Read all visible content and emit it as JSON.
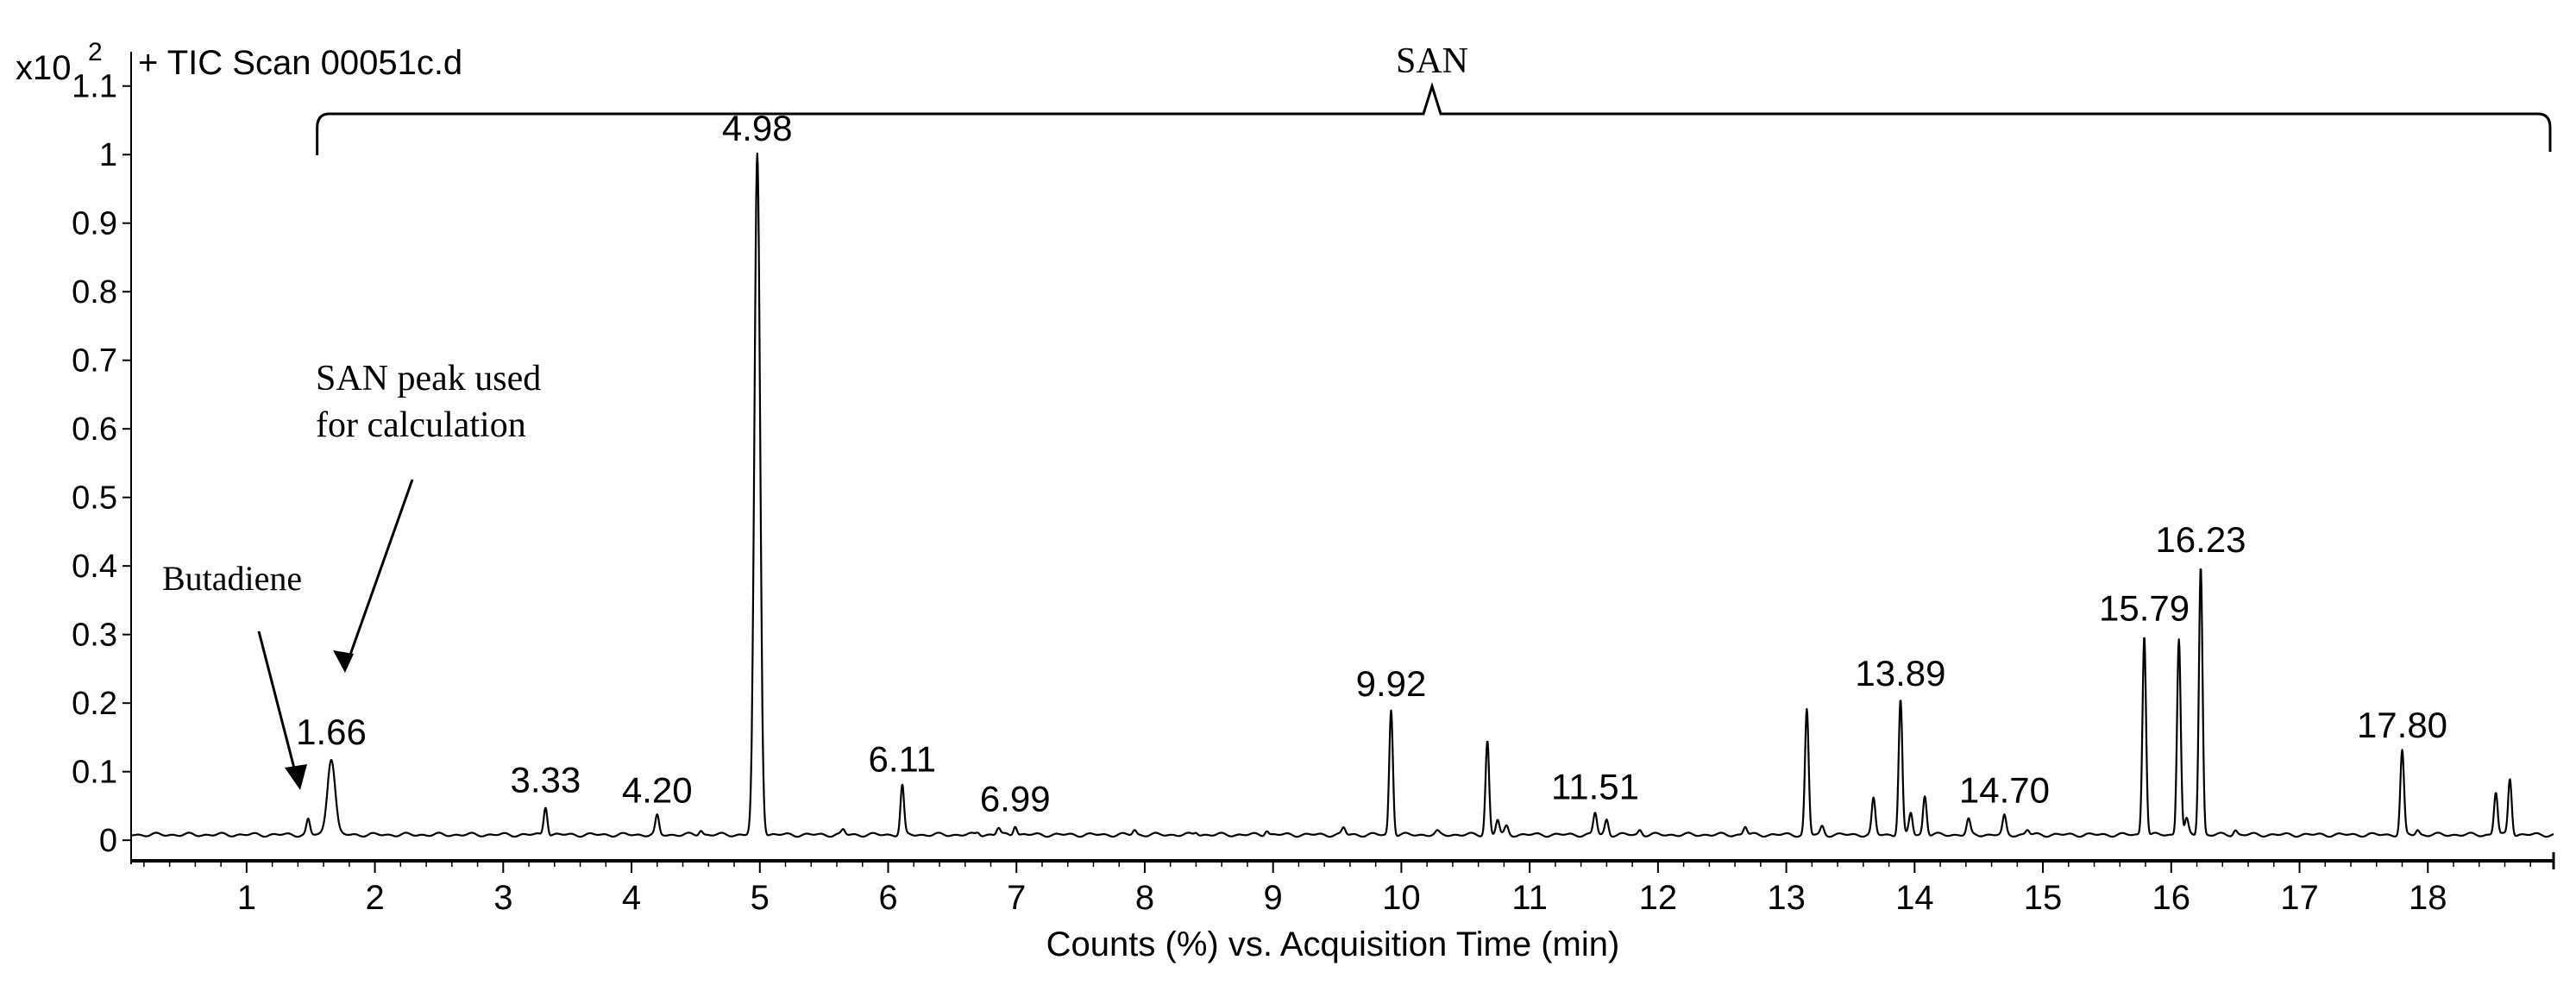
{
  "chart_data": {
    "type": "line",
    "title": "+ TIC Scan 00051c.d",
    "y_multiplier": "x10",
    "y_exponent": "2",
    "xlabel": "Counts (%) vs. Acquisition Time (min)",
    "ylabel": "",
    "xlim": [
      0.1,
      18.98
    ],
    "ylim": [
      -0.03,
      1.15
    ],
    "x_ticks": [
      1,
      2,
      3,
      4,
      5,
      6,
      7,
      8,
      9,
      10,
      11,
      12,
      13,
      14,
      15,
      16,
      17,
      18
    ],
    "y_ticks": [
      {
        "value": 0,
        "label": "0"
      },
      {
        "value": 0.1,
        "label": "0.1"
      },
      {
        "value": 0.2,
        "label": "0.2"
      },
      {
        "value": 0.3,
        "label": "0.3"
      },
      {
        "value": 0.4,
        "label": "0.4"
      },
      {
        "value": 0.5,
        "label": "0.5"
      },
      {
        "value": 0.6,
        "label": "0.6"
      },
      {
        "value": 0.7,
        "label": "0.7"
      },
      {
        "value": 0.8,
        "label": "0.8"
      },
      {
        "value": 0.9,
        "label": "0.9"
      },
      {
        "value": 1,
        "label": "1"
      },
      {
        "value": 1.1,
        "label": "1.1"
      }
    ],
    "baseline": 0.008,
    "peaks": [
      {
        "x": 1.48,
        "y": 0.03
      },
      {
        "x": 1.66,
        "y": 0.12,
        "label": "1.66"
      },
      {
        "x": 3.33,
        "y": 0.05,
        "label": "3.33"
      },
      {
        "x": 4.2,
        "y": 0.035,
        "label": "4.20"
      },
      {
        "x": 4.54,
        "y": 0.015
      },
      {
        "x": 4.98,
        "y": 1.0,
        "label": "4.98"
      },
      {
        "x": 5.65,
        "y": 0.015
      },
      {
        "x": 6.11,
        "y": 0.08,
        "label": "6.11"
      },
      {
        "x": 6.7,
        "y": 0.012
      },
      {
        "x": 6.86,
        "y": 0.018
      },
      {
        "x": 6.99,
        "y": 0.022,
        "label": "6.99"
      },
      {
        "x": 7.92,
        "y": 0.015
      },
      {
        "x": 8.4,
        "y": 0.012
      },
      {
        "x": 8.95,
        "y": 0.015
      },
      {
        "x": 9.55,
        "y": 0.018
      },
      {
        "x": 9.92,
        "y": 0.19,
        "label": "9.92"
      },
      {
        "x": 10.28,
        "y": 0.012
      },
      {
        "x": 10.67,
        "y": 0.145
      },
      {
        "x": 10.75,
        "y": 0.03
      },
      {
        "x": 10.82,
        "y": 0.02
      },
      {
        "x": 11.51,
        "y": 0.04,
        "label": "11.51"
      },
      {
        "x": 11.6,
        "y": 0.03
      },
      {
        "x": 11.86,
        "y": 0.015
      },
      {
        "x": 12.68,
        "y": 0.02
      },
      {
        "x": 13.16,
        "y": 0.19
      },
      {
        "x": 13.28,
        "y": 0.02
      },
      {
        "x": 13.68,
        "y": 0.06
      },
      {
        "x": 13.89,
        "y": 0.205,
        "label": "13.89"
      },
      {
        "x": 13.97,
        "y": 0.04
      },
      {
        "x": 14.08,
        "y": 0.065
      },
      {
        "x": 14.42,
        "y": 0.03
      },
      {
        "x": 14.7,
        "y": 0.035,
        "label": "14.70"
      },
      {
        "x": 14.88,
        "y": 0.015
      },
      {
        "x": 15.79,
        "y": 0.3,
        "label": "15.79"
      },
      {
        "x": 16.06,
        "y": 0.295
      },
      {
        "x": 16.12,
        "y": 0.03
      },
      {
        "x": 16.23,
        "y": 0.4,
        "label": "16.23"
      },
      {
        "x": 16.5,
        "y": 0.015
      },
      {
        "x": 17.8,
        "y": 0.13,
        "label": "17.80"
      },
      {
        "x": 17.92,
        "y": 0.015
      },
      {
        "x": 18.53,
        "y": 0.07
      },
      {
        "x": 18.64,
        "y": 0.09
      }
    ],
    "annotations": {
      "bracket_label": "SAN",
      "bracket_range": [
        1.55,
        18.98
      ],
      "san_peak_note_line1": "SAN peak used",
      "san_peak_note_line2": "for calculation",
      "butadiene_note": "Butadiene"
    },
    "grid": false,
    "legend": "none"
  }
}
